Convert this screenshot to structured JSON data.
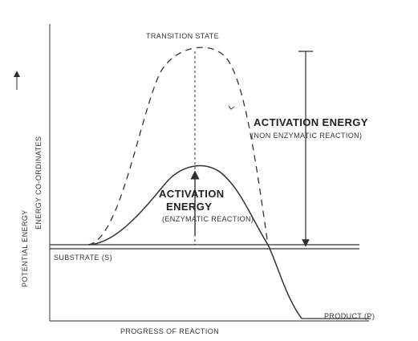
{
  "labels": {
    "transition_state": "TRANSITION STATE",
    "activation_energy_nonenzymatic_title": "ACTIVATION ENERGY",
    "activation_energy_nonenzymatic_note": "(NON ENZYMATIC REACTION)",
    "activation_energy_enzymatic_title_line1": "ACTIVATION",
    "activation_energy_enzymatic_title_line2": "ENERGY",
    "activation_energy_enzymatic_note": "(ENZYMATIC REACTION)",
    "substrate": "SUBSTRATE (S)",
    "product": "PRODUCT (P)",
    "x_axis": "PROGRESS OF REACTION",
    "y_axis_line1": "POTENTIAL ENERGY",
    "y_axis_line2": "ENERGY CO-ORDINATES"
  },
  "colors": {
    "ink": "#2f2f2f",
    "background": "#ffffff"
  }
}
